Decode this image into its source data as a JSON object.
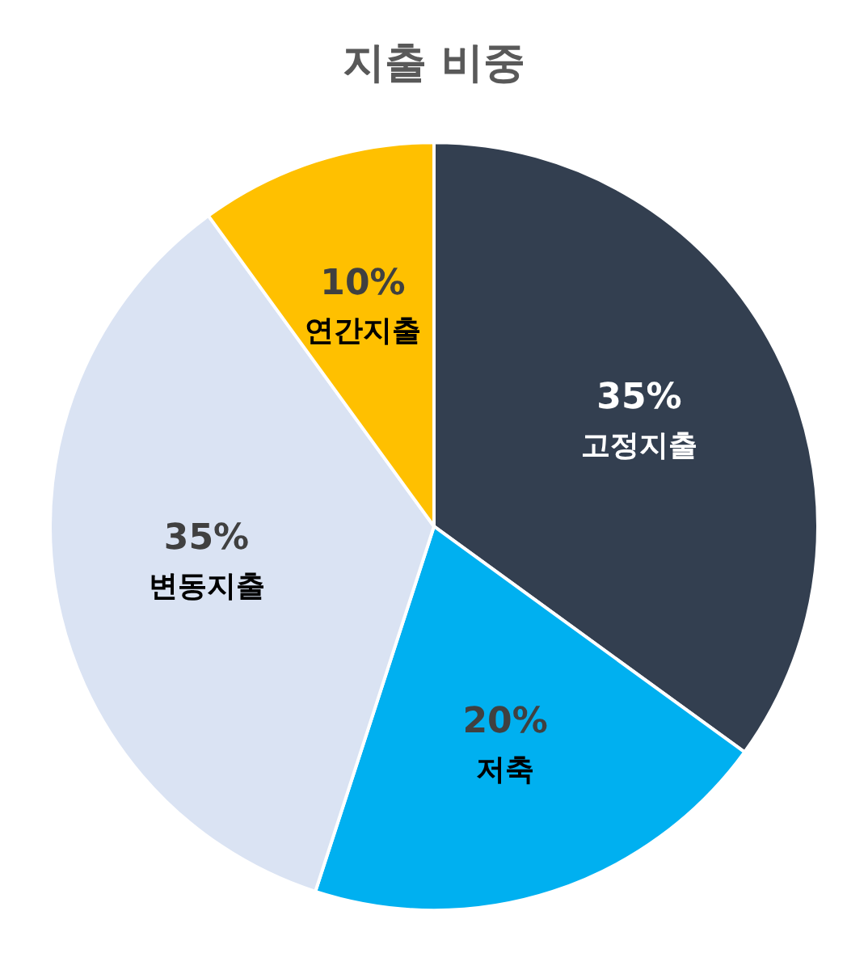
{
  "chart_data": {
    "type": "pie",
    "title": "지출 비중",
    "categories": [
      "고정지출",
      "저축",
      "변동지출",
      "연간지출"
    ],
    "values": [
      35,
      20,
      35,
      10
    ],
    "colors": [
      "#333f50",
      "#00b0f0",
      "#dae3f3",
      "#ffc000"
    ],
    "value_labels": [
      "35%",
      "20%",
      "35%",
      "10%"
    ],
    "legend": false
  }
}
